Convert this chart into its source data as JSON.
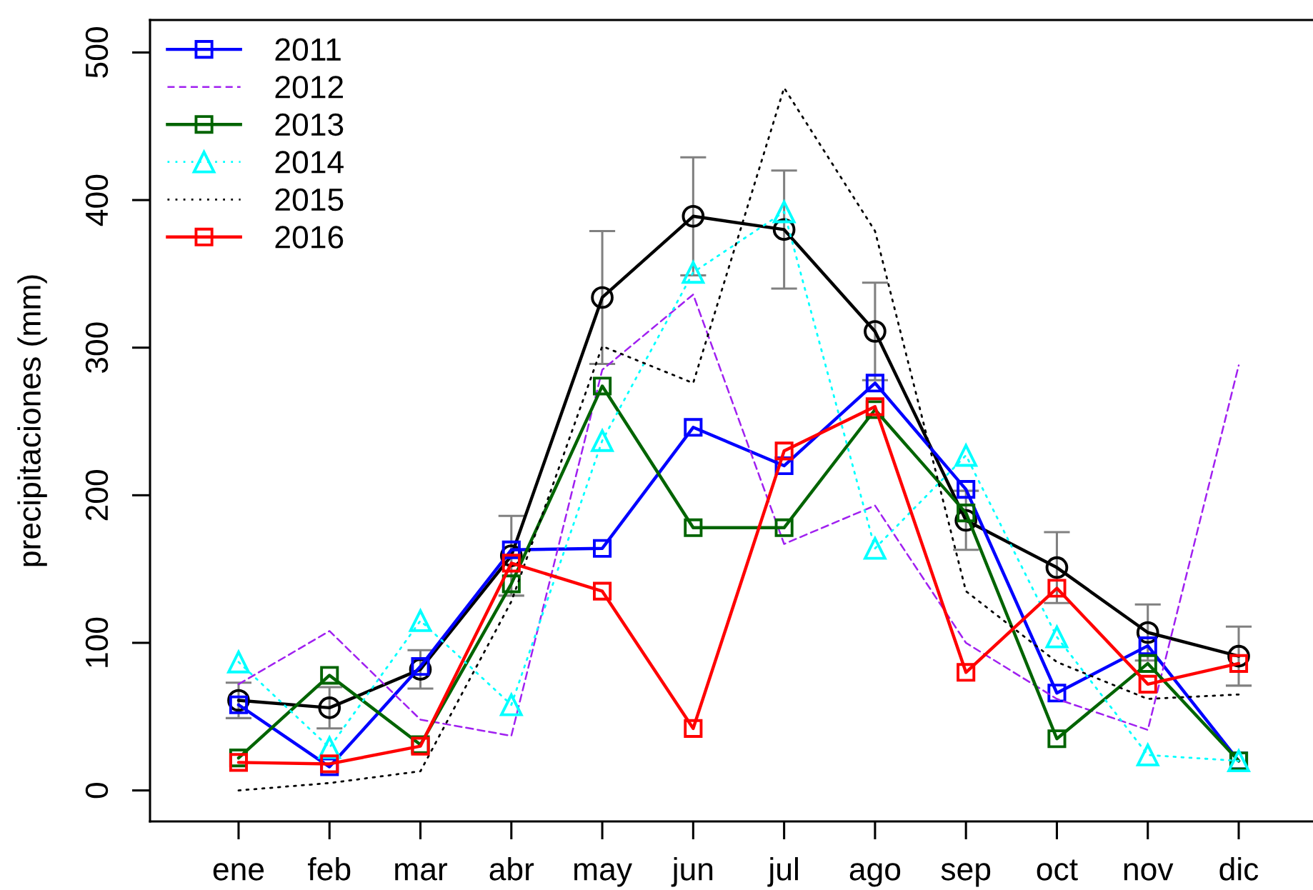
{
  "chart_data": {
    "type": "line",
    "ylabel": "precipitaciones (mm)",
    "categories": [
      "ene",
      "feb",
      "mar",
      "abr",
      "may",
      "jun",
      "jul",
      "ago",
      "sep",
      "oct",
      "nov",
      "dic"
    ],
    "ylim": [
      -21,
      522
    ],
    "yticks": [
      0,
      100,
      200,
      300,
      400,
      500
    ],
    "grid": false,
    "legend": "top left",
    "series": [
      {
        "color": "#000000",
        "marker": "circle",
        "line_style": "solid",
        "values": [
          61,
          56,
          82,
          159,
          334,
          389,
          380,
          311,
          183,
          151,
          107,
          91
        ],
        "errors": [
          12,
          14,
          13,
          27,
          45,
          40,
          40,
          33,
          20,
          24,
          19,
          20
        ]
      },
      {
        "name": "2011",
        "color": "#0000ff",
        "marker": "square",
        "line_style": "solid",
        "values": [
          58,
          16,
          84,
          163,
          164,
          246,
          220,
          276,
          204,
          66,
          98,
          20
        ]
      },
      {
        "name": "2012",
        "color": "#a020f0",
        "marker": "none",
        "line_style": "dashed",
        "values": [
          72,
          108,
          48,
          37,
          285,
          336,
          167,
          193,
          100,
          62,
          41,
          288
        ]
      },
      {
        "name": "2013",
        "color": "#006400",
        "marker": "square",
        "line_style": "solid",
        "values": [
          22,
          78,
          31,
          140,
          274,
          178,
          178,
          258,
          188,
          35,
          86,
          20
        ]
      },
      {
        "name": "2014",
        "color": "#00ffff",
        "marker": "triangle",
        "line_style": "dotted",
        "values": [
          87,
          29,
          115,
          58,
          237,
          351,
          392,
          164,
          227,
          104,
          24,
          20
        ]
      },
      {
        "name": "2015",
        "color": "#000000",
        "marker": "none",
        "line_style": "dotted",
        "values": [
          0,
          5,
          13,
          128,
          301,
          276,
          476,
          379,
          135,
          87,
          62,
          65
        ]
      },
      {
        "name": "2016",
        "color": "#ff0000",
        "marker": "square",
        "line_style": "solid",
        "values": [
          19,
          18,
          30,
          154,
          135,
          42,
          230,
          260,
          80,
          137,
          72,
          86
        ]
      }
    ]
  }
}
